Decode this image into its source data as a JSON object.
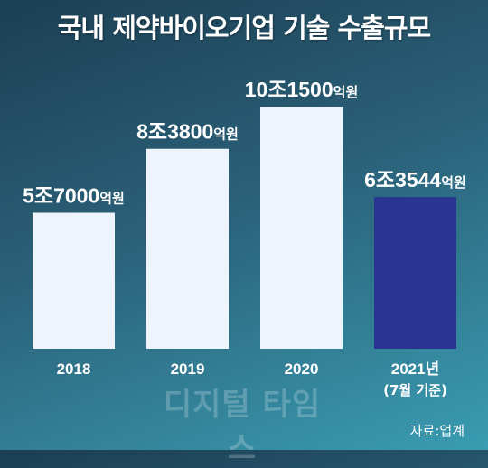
{
  "title": "국내 제약바이오기업 기술 수출규모",
  "watermark": "디지털 타임스",
  "source": "자료:업계",
  "colors": {
    "bar_default": "#eef4fb",
    "bar_highlight": "#28348f"
  },
  "chart_data": {
    "type": "bar",
    "categories": [
      "2018",
      "2019",
      "2020",
      "2021년"
    ],
    "category_notes": [
      "",
      "",
      "",
      "(7월 기준)"
    ],
    "values": [
      5.7,
      8.38,
      10.15,
      6.3544
    ],
    "unit": "조원",
    "data_labels": [
      {
        "main": "5조7000",
        "unit": "억원"
      },
      {
        "main": "8조3800",
        "unit": "억원"
      },
      {
        "main": "10조1500",
        "unit": "억원"
      },
      {
        "main": "6조3544",
        "unit": "억원"
      }
    ],
    "highlight_index": 3,
    "ylim": [
      0,
      11.4
    ],
    "grid": false,
    "legend": "none"
  }
}
